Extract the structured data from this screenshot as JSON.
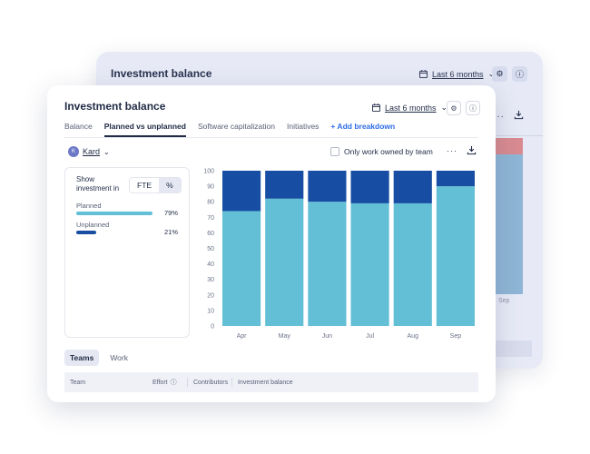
{
  "back_card": {
    "title": "Investment balance",
    "period_label": "Last 6 months",
    "tick_label": "Sep"
  },
  "front_card": {
    "title": "Investment balance",
    "period_label": "Last 6 months",
    "tabs": [
      {
        "label": "Balance",
        "active": false
      },
      {
        "label": "Planned vs unplanned",
        "active": true
      },
      {
        "label": "Software capitalization",
        "active": false
      },
      {
        "label": "Initiatives",
        "active": false
      }
    ],
    "add_breakdown_label": "+ Add breakdown",
    "team": {
      "avatar_letter": "K",
      "name": "Kard"
    },
    "only_work_label": "Only work owned by team",
    "more_label": "···",
    "side_panel": {
      "show_label": "Show investment in",
      "toggle_options": [
        "FTE",
        "%"
      ],
      "toggle_selected": "%",
      "legend": [
        {
          "label": "Planned",
          "value": "79%",
          "fraction": 0.79,
          "color": "#62bfd6"
        },
        {
          "label": "Unplanned",
          "value": "21%",
          "fraction": 0.21,
          "color": "#1a4ea0"
        }
      ]
    },
    "bottom_tabs": [
      {
        "label": "Teams",
        "selected": true
      },
      {
        "label": "Work",
        "selected": false
      }
    ],
    "table_headers": [
      "Team",
      "Effort",
      "Contributors",
      "Investment balance"
    ]
  },
  "colors": {
    "planned": "#62bfd6",
    "unplanned": "#174ea3",
    "accent": "#2e6de6"
  },
  "chart_data": {
    "type": "bar",
    "stacked": true,
    "categories": [
      "Apr",
      "May",
      "Jun",
      "Jul",
      "Aug",
      "Sep"
    ],
    "series": [
      {
        "name": "Planned",
        "values": [
          74,
          82,
          80,
          79,
          79,
          90
        ]
      },
      {
        "name": "Unplanned",
        "values": [
          26,
          18,
          20,
          21,
          21,
          10
        ]
      }
    ],
    "ylim": [
      0,
      100
    ],
    "yticks": [
      0,
      10,
      20,
      30,
      40,
      50,
      60,
      70,
      80,
      90,
      100
    ],
    "grid": false,
    "legend": "none"
  }
}
